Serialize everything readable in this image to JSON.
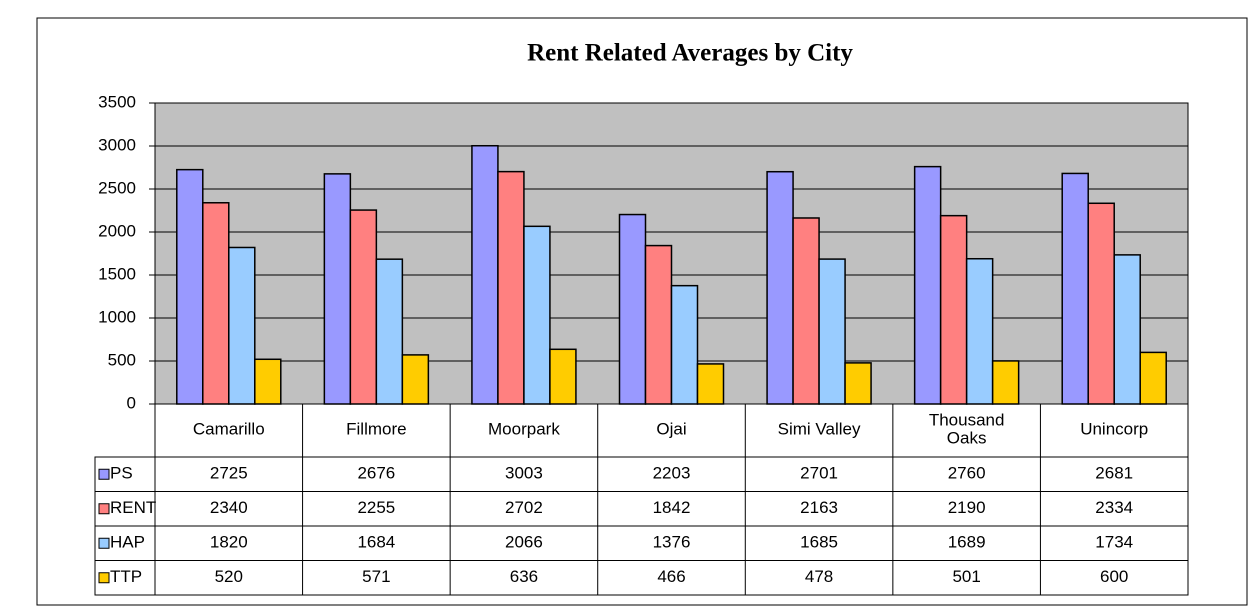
{
  "chart_data": {
    "type": "bar",
    "title": "Rent Related Averages by City",
    "categories": [
      "Camarillo",
      "Fillmore",
      "Moorpark",
      "Ojai",
      "Simi Valley",
      "Thousand Oaks",
      "Unincorp"
    ],
    "series": [
      {
        "name": "PS",
        "color": "#9999ff",
        "values": [
          2725,
          2676,
          3003,
          2203,
          2701,
          2760,
          2681
        ]
      },
      {
        "name": "RENT",
        "color": "#ff8080",
        "values": [
          2340,
          2255,
          2702,
          1842,
          2163,
          2190,
          2334
        ]
      },
      {
        "name": "HAP",
        "color": "#99ccff",
        "values": [
          1820,
          1684,
          2066,
          1376,
          1685,
          1689,
          1734
        ]
      },
      {
        "name": "TTP",
        "color": "#ffcc00",
        "values": [
          520,
          571,
          636,
          466,
          478,
          501,
          600
        ]
      }
    ],
    "ylim": [
      0,
      3500
    ],
    "yticks": [
      0,
      500,
      1000,
      1500,
      2000,
      2500,
      3000,
      3500
    ],
    "grid": true,
    "data_table": true
  }
}
